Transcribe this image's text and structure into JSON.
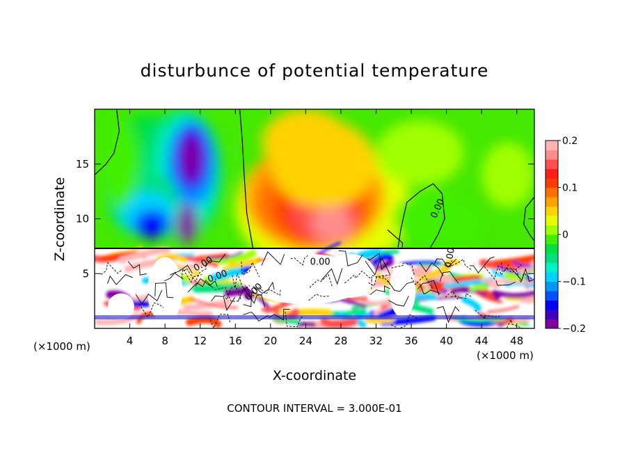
{
  "chart_data": {
    "type": "heatmap",
    "title": "disturbunce of potential temperature",
    "xlabel": "X-coordinate",
    "ylabel": "Z-coordinate",
    "x_unit_label": "(×1000 m)",
    "x_unit_label_right": "(×1000 m)",
    "footer": "CONTOUR INTERVAL = 3.000E-01",
    "xlim": [
      0,
      50
    ],
    "ylim": [
      0,
      20
    ],
    "x_ticks": [
      4,
      8,
      12,
      16,
      20,
      24,
      28,
      32,
      36,
      40,
      44,
      48
    ],
    "y_ticks": [
      5,
      10,
      15
    ],
    "colorbar": {
      "min": -0.2,
      "max": 0.2,
      "tick_values": [
        0.2,
        0.1,
        0,
        -0.1,
        -0.2
      ],
      "tick_labels": [
        "0.2",
        "0.1",
        "0",
        "−0.1",
        "−0.2"
      ],
      "colors": [
        "#8000a0",
        "#4000c0",
        "#0000ff",
        "#0050ff",
        "#0096ff",
        "#00d2ff",
        "#00f0c8",
        "#00e080",
        "#00e040",
        "#40f000",
        "#a0ff00",
        "#e6ff00",
        "#ffd200",
        "#ffa000",
        "#ff6e00",
        "#ff3c00",
        "#ff1e1e",
        "#ff5050",
        "#ff8c8c",
        "#ffb4b4"
      ]
    },
    "contour_labels": [
      "0.00",
      "0.00",
      "0.00",
      "0.00",
      "0.00",
      "0.00"
    ],
    "features": [
      {
        "kind": "cold anomaly",
        "x": 11,
        "z": 15,
        "value": -0.19
      },
      {
        "kind": "cold anomaly",
        "x": 6,
        "z": 12,
        "value": -0.12
      },
      {
        "kind": "warm anomaly",
        "x": 26,
        "z": 11,
        "value": 0.18
      },
      {
        "kind": "weak cold anomaly",
        "x": 38,
        "z": 10,
        "value": -0.03
      },
      {
        "kind": "mixed-layer turbulence",
        "x": 25,
        "z": 4,
        "value": 0.0
      }
    ]
  }
}
